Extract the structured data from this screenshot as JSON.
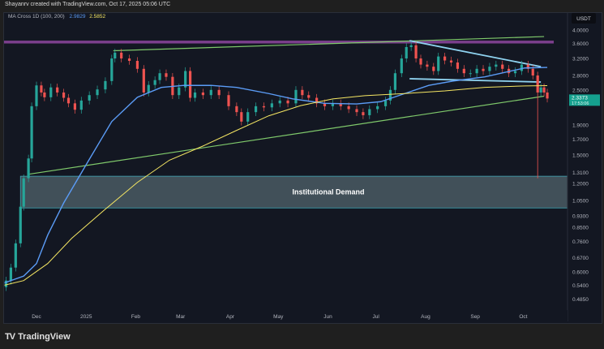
{
  "header": {
    "text": "Shayanrv created with TradingView.com, Oct 17, 2025 05:06 UTC"
  },
  "footer": {
    "brand": "TradingView"
  },
  "chart_data": {
    "type": "candlestick",
    "legend": {
      "label": "MA Cross  1D (100, 200)",
      "ma100_value": "2.9829",
      "ma200_value": "2.5852"
    },
    "y_axis": {
      "unit_label": "USDT",
      "scale": "log",
      "range": [
        0.47,
        4.1
      ],
      "ticks": [
        "4.0000",
        "3.6000",
        "3.2000",
        "2.8000",
        "2.5000",
        "1.9000",
        "1.7000",
        "1.5000",
        "1.3100",
        "1.2000",
        "1.0500",
        "0.9300",
        "0.8500",
        "0.7600",
        "0.6700",
        "0.6000",
        "0.5400",
        "0.4850"
      ]
    },
    "x_axis": {
      "ticks": [
        {
          "label": "Dec",
          "date": "2024-12-01"
        },
        {
          "label": "2025",
          "date": "2025-01-01"
        },
        {
          "label": "Feb",
          "date": "2025-02-01"
        },
        {
          "label": "Mar",
          "date": "2025-03-01"
        },
        {
          "label": "Apr",
          "date": "2025-04-01"
        },
        {
          "label": "May",
          "date": "2025-05-01"
        },
        {
          "label": "Jun",
          "date": "2025-06-01"
        },
        {
          "label": "Jul",
          "date": "2025-07-01"
        },
        {
          "label": "Aug",
          "date": "2025-08-01"
        },
        {
          "label": "Sep",
          "date": "2025-09-01"
        },
        {
          "label": "Oct",
          "date": "2025-10-01"
        }
      ]
    },
    "current_price": {
      "value": "2.3373",
      "countdown": "17:53:06"
    },
    "colors": {
      "up": "#26a69a",
      "down": "#ef5350",
      "ma100": "#5b9cf6",
      "ma200": "#f5e663",
      "trendline": "#7fc96b",
      "wedge": "#8fd3f0",
      "resistance": "#7b3f8c",
      "demand_zone": "#4a5a63"
    },
    "candles": [
      {
        "date": "2024-11-12",
        "close": 0.56
      },
      {
        "date": "2024-11-15",
        "close": 0.62
      },
      {
        "date": "2024-11-18",
        "close": 0.75
      },
      {
        "date": "2024-11-21",
        "close": 1.0
      },
      {
        "date": "2024-11-23",
        "close": 1.25
      },
      {
        "date": "2024-11-26",
        "close": 1.46
      },
      {
        "date": "2024-11-28",
        "close": 2.2
      },
      {
        "date": "2024-12-01",
        "close": 2.59
      },
      {
        "date": "2024-12-04",
        "close": 2.45
      },
      {
        "date": "2024-12-06",
        "close": 2.36
      },
      {
        "date": "2024-12-10",
        "close": 2.55
      },
      {
        "date": "2024-12-14",
        "close": 2.45
      },
      {
        "date": "2024-12-18",
        "close": 2.35
      },
      {
        "date": "2024-12-21",
        "close": 2.25
      },
      {
        "date": "2024-12-25",
        "close": 2.14
      },
      {
        "date": "2024-12-29",
        "close": 2.3
      },
      {
        "date": "2025-01-03",
        "close": 2.4
      },
      {
        "date": "2025-01-08",
        "close": 2.51
      },
      {
        "date": "2025-01-13",
        "close": 2.68
      },
      {
        "date": "2025-01-17",
        "close": 3.2
      },
      {
        "date": "2025-01-19",
        "close": 3.35
      },
      {
        "date": "2025-01-23",
        "close": 3.2
      },
      {
        "date": "2025-01-28",
        "close": 3.14
      },
      {
        "date": "2025-02-02",
        "close": 2.95
      },
      {
        "date": "2025-02-06",
        "close": 2.45
      },
      {
        "date": "2025-02-09",
        "close": 2.6
      },
      {
        "date": "2025-02-13",
        "close": 2.7
      },
      {
        "date": "2025-02-16",
        "close": 2.85
      },
      {
        "date": "2025-02-20",
        "close": 2.77
      },
      {
        "date": "2025-02-24",
        "close": 2.4
      },
      {
        "date": "2025-02-28",
        "close": 2.55
      },
      {
        "date": "2025-03-04",
        "close": 2.9
      },
      {
        "date": "2025-03-07",
        "close": 2.35
      },
      {
        "date": "2025-03-10",
        "close": 2.45
      },
      {
        "date": "2025-03-15",
        "close": 2.4
      },
      {
        "date": "2025-03-20",
        "close": 2.5
      },
      {
        "date": "2025-03-25",
        "close": 2.4
      },
      {
        "date": "2025-03-31",
        "close": 2.2
      },
      {
        "date": "2025-04-05",
        "close": 2.1
      },
      {
        "date": "2025-04-08",
        "close": 1.95
      },
      {
        "date": "2025-04-12",
        "close": 2.1
      },
      {
        "date": "2025-04-17",
        "close": 2.2
      },
      {
        "date": "2025-04-22",
        "close": 2.18
      },
      {
        "date": "2025-04-27",
        "close": 2.25
      },
      {
        "date": "2025-05-02",
        "close": 2.3
      },
      {
        "date": "2025-05-07",
        "close": 2.25
      },
      {
        "date": "2025-05-12",
        "close": 2.5
      },
      {
        "date": "2025-05-16",
        "close": 2.4
      },
      {
        "date": "2025-05-20",
        "close": 2.35
      },
      {
        "date": "2025-05-25",
        "close": 2.25
      },
      {
        "date": "2025-05-30",
        "close": 2.2
      },
      {
        "date": "2025-06-04",
        "close": 2.25
      },
      {
        "date": "2025-06-09",
        "close": 2.2
      },
      {
        "date": "2025-06-14",
        "close": 2.15
      },
      {
        "date": "2025-06-19",
        "close": 2.1
      },
      {
        "date": "2025-06-23",
        "close": 2.05
      },
      {
        "date": "2025-06-27",
        "close": 2.15
      },
      {
        "date": "2025-07-02",
        "close": 2.2
      },
      {
        "date": "2025-07-07",
        "close": 2.3
      },
      {
        "date": "2025-07-10",
        "close": 2.5
      },
      {
        "date": "2025-07-13",
        "close": 2.85
      },
      {
        "date": "2025-07-17",
        "close": 3.2
      },
      {
        "date": "2025-07-20",
        "close": 3.5
      },
      {
        "date": "2025-07-23",
        "close": 3.55
      },
      {
        "date": "2025-07-26",
        "close": 3.2
      },
      {
        "date": "2025-07-29",
        "close": 3.05
      },
      {
        "date": "2025-08-02",
        "close": 3.0
      },
      {
        "date": "2025-08-06",
        "close": 2.9
      },
      {
        "date": "2025-08-09",
        "close": 3.25
      },
      {
        "date": "2025-08-13",
        "close": 3.15
      },
      {
        "date": "2025-08-17",
        "close": 3.1
      },
      {
        "date": "2025-08-21",
        "close": 2.95
      },
      {
        "date": "2025-08-25",
        "close": 2.85
      },
      {
        "date": "2025-08-29",
        "close": 2.85
      },
      {
        "date": "2025-09-02",
        "close": 2.95
      },
      {
        "date": "2025-09-06",
        "close": 2.9
      },
      {
        "date": "2025-09-10",
        "close": 3.0
      },
      {
        "date": "2025-09-14",
        "close": 3.05
      },
      {
        "date": "2025-09-18",
        "close": 2.95
      },
      {
        "date": "2025-09-22",
        "close": 2.85
      },
      {
        "date": "2025-09-26",
        "close": 2.9
      },
      {
        "date": "2025-09-30",
        "close": 3.05
      },
      {
        "date": "2025-10-04",
        "close": 2.95
      },
      {
        "date": "2025-10-07",
        "close": 2.8
      },
      {
        "date": "2025-10-10",
        "close": 2.45,
        "low": 1.25
      },
      {
        "date": "2025-10-12",
        "close": 2.55
      },
      {
        "date": "2025-10-14",
        "close": 2.45
      },
      {
        "date": "2025-10-16",
        "close": 2.3373
      }
    ],
    "ma100": [
      {
        "date": "2024-11-11",
        "value": 0.55
      },
      {
        "date": "2024-11-23",
        "value": 0.58
      },
      {
        "date": "2024-12-01",
        "value": 0.64
      },
      {
        "date": "2024-12-08",
        "value": 0.8
      },
      {
        "date": "2024-12-18",
        "value": 1.03
      },
      {
        "date": "2025-01-02",
        "value": 1.42
      },
      {
        "date": "2025-01-17",
        "value": 1.95
      },
      {
        "date": "2025-02-02",
        "value": 2.36
      },
      {
        "date": "2025-02-17",
        "value": 2.55
      },
      {
        "date": "2025-03-03",
        "value": 2.59
      },
      {
        "date": "2025-03-20",
        "value": 2.59
      },
      {
        "date": "2025-04-05",
        "value": 2.55
      },
      {
        "date": "2025-04-25",
        "value": 2.43
      },
      {
        "date": "2025-05-10",
        "value": 2.33
      },
      {
        "date": "2025-05-30",
        "value": 2.25
      },
      {
        "date": "2025-06-19",
        "value": 2.24
      },
      {
        "date": "2025-07-04",
        "value": 2.28
      },
      {
        "date": "2025-07-19",
        "value": 2.43
      },
      {
        "date": "2025-08-03",
        "value": 2.59
      },
      {
        "date": "2025-08-18",
        "value": 2.68
      },
      {
        "date": "2025-09-07",
        "value": 2.77
      },
      {
        "date": "2025-09-22",
        "value": 2.89
      },
      {
        "date": "2025-10-02",
        "value": 2.97
      },
      {
        "date": "2025-10-16",
        "value": 2.9829
      }
    ],
    "ma200": [
      {
        "date": "2024-11-11",
        "value": 0.54
      },
      {
        "date": "2024-11-23",
        "value": 0.56
      },
      {
        "date": "2024-12-08",
        "value": 0.64
      },
      {
        "date": "2024-12-23",
        "value": 0.78
      },
      {
        "date": "2025-01-12",
        "value": 0.97
      },
      {
        "date": "2025-02-02",
        "value": 1.21
      },
      {
        "date": "2025-02-22",
        "value": 1.44
      },
      {
        "date": "2025-03-15",
        "value": 1.61
      },
      {
        "date": "2025-04-05",
        "value": 1.82
      },
      {
        "date": "2025-04-25",
        "value": 2.04
      },
      {
        "date": "2025-05-15",
        "value": 2.21
      },
      {
        "date": "2025-06-04",
        "value": 2.33
      },
      {
        "date": "2025-06-24",
        "value": 2.39
      },
      {
        "date": "2025-07-19",
        "value": 2.43
      },
      {
        "date": "2025-08-13",
        "value": 2.48
      },
      {
        "date": "2025-09-07",
        "value": 2.55
      },
      {
        "date": "2025-10-02",
        "value": 2.58
      },
      {
        "date": "2025-10-16",
        "value": 2.5852
      }
    ],
    "annotations": {
      "demand_zone": {
        "label": "Institutional Demand",
        "from_date": "2024-11-21",
        "price_top": 1.27,
        "price_bottom": 0.99
      },
      "resistance_band": {
        "price_top": 3.68,
        "price_bottom": 3.6
      },
      "upper_trendline": {
        "start": {
          "date": "2025-01-18",
          "price": 3.4
        },
        "end": {
          "date": "2025-10-14",
          "price": 3.8
        }
      },
      "lower_trendline": {
        "start": {
          "date": "2024-11-26",
          "price": 1.29
        },
        "end": {
          "date": "2025-10-14",
          "price": 2.38
        }
      },
      "wedge_upper": {
        "start": {
          "date": "2025-07-22",
          "price": 3.68
        },
        "end": {
          "date": "2025-10-12",
          "price": 3.0
        }
      },
      "wedge_lower": {
        "start": {
          "date": "2025-07-22",
          "price": 2.73
        },
        "end": {
          "date": "2025-10-12",
          "price": 2.66
        }
      }
    }
  }
}
